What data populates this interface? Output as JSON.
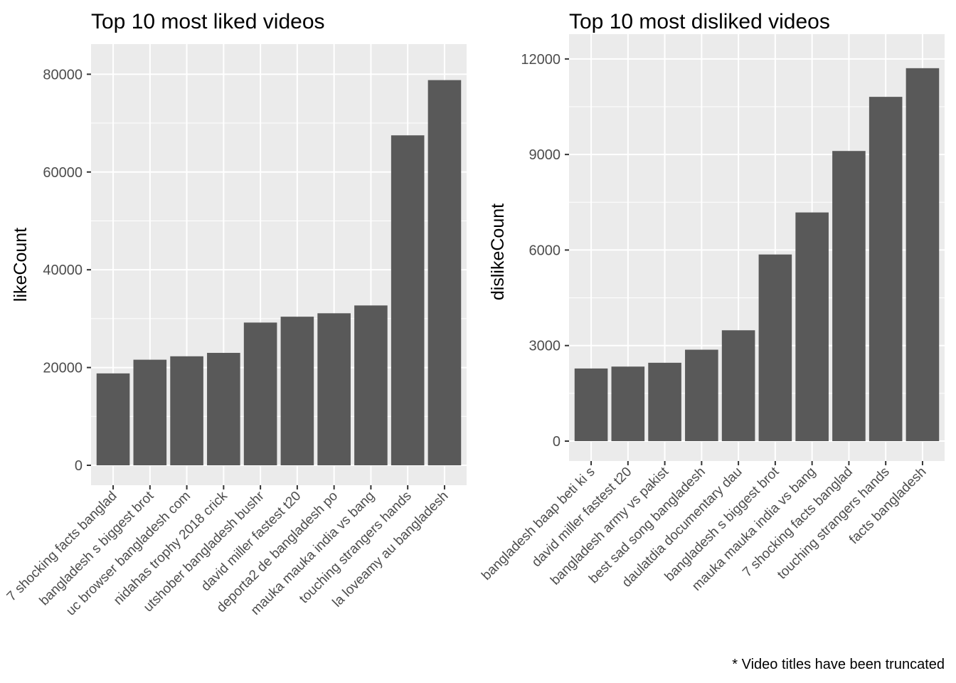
{
  "caption": "* Video titles have been truncated",
  "colors": {
    "bar": "#595959",
    "panel": "#ebebeb",
    "grid": "#ffffff"
  },
  "chart_data": [
    {
      "type": "bar",
      "title": "Top 10 most liked videos",
      "xlabel": "",
      "ylabel": "likeCount",
      "ylim": [
        0,
        85000
      ],
      "yticks": [
        0,
        20000,
        40000,
        60000,
        80000
      ],
      "grid": true,
      "categories": [
        "7 shocking facts  banglad",
        "bangladesh s biggest brot",
        "uc browser bangladesh com",
        "nidahas trophy 2018 crick",
        "utshober bangladesh bushr",
        "david miller fastest t20",
        "deporta2 de bangladesh po",
        "mauka mauka india vs bang",
        "touching strangers hands",
        "la loveamy au bangladesh"
      ],
      "values": [
        18800,
        21600,
        22300,
        23000,
        29200,
        30400,
        31100,
        32700,
        67500,
        78800
      ]
    },
    {
      "type": "bar",
      "title": "Top 10 most disliked videos",
      "xlabel": "",
      "ylabel": "dislikeCount",
      "ylim": [
        0,
        12600
      ],
      "yticks": [
        0,
        3000,
        6000,
        9000,
        12000
      ],
      "grid": true,
      "categories": [
        "bangladesh baap beti ki s",
        "david miller fastest t20",
        "bangladesh army vs pakist",
        "best sad song  bangladesh",
        "daulatdia documentary dau",
        "bangladesh s biggest brot",
        "mauka mauka india vs bang",
        "7 shocking facts  banglad",
        "touching strangers hands",
        "facts  bangladesh"
      ],
      "values": [
        2280,
        2340,
        2460,
        2870,
        3480,
        5860,
        7180,
        9110,
        10810,
        11710
      ]
    }
  ]
}
